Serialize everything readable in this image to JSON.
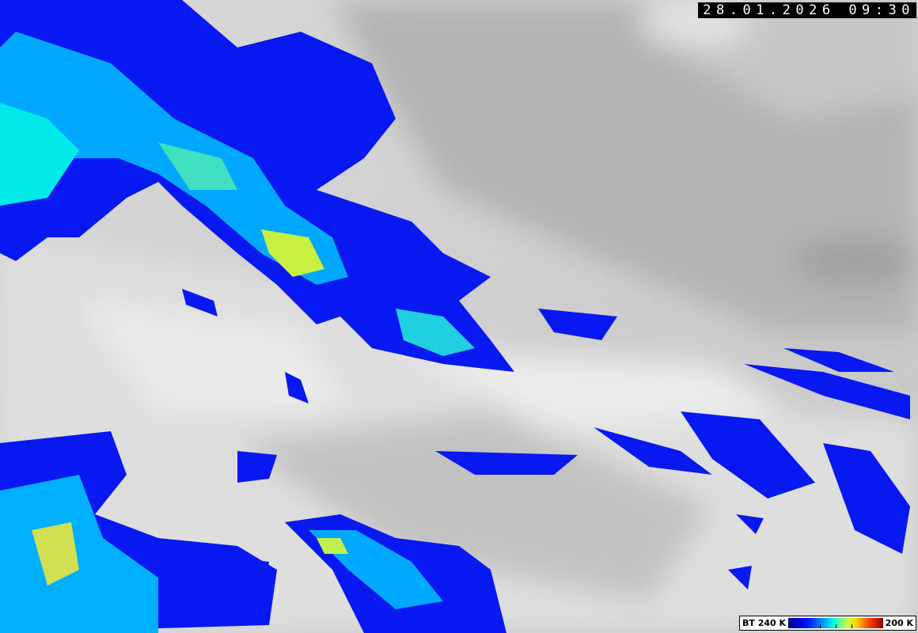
{
  "timestamp": "28.01.2026 09:30",
  "legend": {
    "variable": "BT 240 K",
    "max_label": "200 K",
    "colors": [
      "#00008c",
      "#0010ff",
      "#00a0ff",
      "#00ffe0",
      "#c8ff40",
      "#ffd000",
      "#ff4000",
      "#8c0000"
    ]
  },
  "background_colors": {
    "cloud_bright": "#e6e6e6",
    "cloud_mid": "#c0c0c0",
    "cloud_dark": "#a8a8a8"
  }
}
